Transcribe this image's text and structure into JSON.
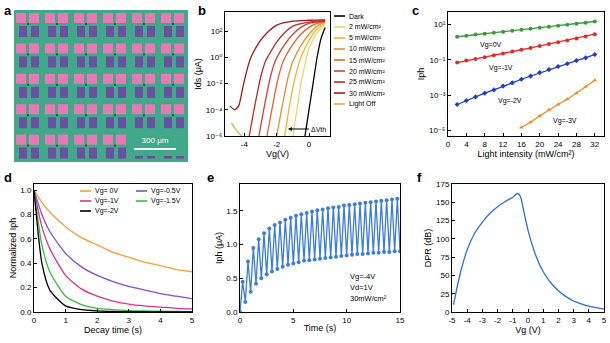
{
  "chart_data": [
    {
      "type": "image",
      "title": "a",
      "scale_bar": "300 μm"
    },
    {
      "type": "line",
      "title": "b",
      "x_label": "Vg(V)",
      "y_label": "Ids (μA)",
      "log": "y",
      "xlim": [
        -5.2,
        1.3
      ],
      "xticks": [
        -4,
        -2,
        0
      ],
      "ylim": [
        1e-06,
        3000
      ],
      "yticks": [
        {
          "value": 1e-06,
          "label": "10⁻⁶"
        },
        {
          "value": 0.0001,
          "label": "10⁻⁴"
        },
        {
          "value": 0.01,
          "label": "10⁻²"
        },
        {
          "value": 1,
          "label": "10⁰"
        },
        {
          "value": 100,
          "label": "10²"
        }
      ],
      "legend": "right",
      "annotations": [
        "ΔVth"
      ],
      "series": [
        {
          "name": "Dark",
          "color": "#000000",
          "x": [
            -0.25,
            0,
            0.25,
            0.5,
            0.75,
            1.0
          ],
          "values": [
            1e-06,
            0.0001,
            0.01,
            1,
            30,
            200
          ]
        },
        {
          "name": "2 mW/cm²",
          "color": "#f3d36a",
          "x": [
            -1,
            -0.75,
            -0.5,
            -0.25,
            0,
            0.5,
            1
          ],
          "values": [
            1e-06,
            0.0001,
            0.01,
            0.3,
            5,
            80,
            300
          ]
        },
        {
          "name": "5 mW/cm²",
          "color": "#f0b429",
          "x": [
            -1.5,
            -1.25,
            -1,
            -0.75,
            -0.5,
            0,
            0.5,
            1
          ],
          "values": [
            1e-06,
            0.0001,
            0.005,
            0.1,
            1,
            20,
            150,
            400
          ]
        },
        {
          "name": "10 mW/cm²",
          "color": "#f08c2a",
          "x": [
            -2,
            -1.75,
            -1.5,
            -1.25,
            -1,
            -0.5,
            0,
            0.5,
            1
          ],
          "values": [
            1e-06,
            5e-05,
            0.002,
            0.05,
            0.5,
            8,
            60,
            250,
            500
          ]
        },
        {
          "name": "15 mW/cm²",
          "color": "#e8632a",
          "x": [
            -2.6,
            -2.35,
            -2.1,
            -1.85,
            -1.6,
            -1,
            -0.5,
            0,
            0.5,
            1
          ],
          "values": [
            1e-06,
            5e-05,
            0.002,
            0.05,
            0.5,
            10,
            60,
            200,
            400,
            550
          ]
        },
        {
          "name": "20 mW/cm²",
          "color": "#d9402a",
          "x": [
            -3.1,
            -2.85,
            -2.6,
            -2.35,
            -2.1,
            -1.5,
            -1,
            -0.5,
            0,
            1
          ],
          "values": [
            1e-06,
            5e-05,
            0.002,
            0.05,
            0.5,
            10,
            60,
            200,
            400,
            600
          ]
        },
        {
          "name": "25 mW/cm²",
          "color": "#c0282a",
          "x": [
            -3.7,
            -3.45,
            -3.2,
            -2.95,
            -2.7,
            -2,
            -1.5,
            -1,
            0,
            1
          ],
          "values": [
            1e-06,
            5e-05,
            0.002,
            0.05,
            0.5,
            15,
            80,
            250,
            500,
            650
          ]
        },
        {
          "name": "30 mW/cm²",
          "color": "#a01818",
          "x": [
            -4.9,
            -4.6,
            -4.35,
            -4.1,
            -3.85,
            -3.6,
            -3,
            -2.5,
            -2,
            -1,
            0,
            1
          ],
          "values": [
            0.0002,
            0.0001,
            0.0002,
            0.005,
            0.1,
            1,
            20,
            100,
            300,
            600,
            700,
            750
          ]
        },
        {
          "name": "Light Off",
          "color": "#e0b030",
          "x": [
            -4.8,
            -4.6,
            -4.4,
            -4.2
          ],
          "values": [
            1e-05,
            4e-06,
            2e-06,
            1e-06
          ]
        }
      ]
    },
    {
      "type": "scatter",
      "title": "c",
      "x_label": "Light intensity (mW/cm²)",
      "y_label": "Iph",
      "log": "y",
      "xlim": [
        0,
        34
      ],
      "xticks": [
        0,
        4,
        8,
        12,
        16,
        20,
        24,
        28,
        32
      ],
      "ylim": [
        5e-06,
        50
      ],
      "yticks": [
        {
          "value": 1e-05,
          "label": "10⁻⁵"
        },
        {
          "value": 0.001,
          "label": "10⁻³"
        },
        {
          "value": 0.1,
          "label": "10⁻¹"
        },
        {
          "value": 10,
          "label": "10¹"
        }
      ],
      "x": [
        2,
        4,
        6,
        8,
        10,
        12,
        14,
        16,
        18,
        20,
        22,
        24,
        26,
        28,
        30,
        32
      ],
      "series": [
        {
          "name": "Vg=0V",
          "color": "#3a9a3a",
          "marker": "circle",
          "values": [
            2,
            2.3,
            2.7,
            3,
            3.4,
            3.9,
            4.4,
            5,
            5.7,
            6.5,
            7.4,
            8.4,
            9.6,
            11,
            12.5,
            14.5
          ]
        },
        {
          "name": "Vg=-1V",
          "color": "#e8282a",
          "marker": "circle",
          "values": [
            0.07,
            0.09,
            0.11,
            0.14,
            0.18,
            0.23,
            0.29,
            0.37,
            0.47,
            0.6,
            0.77,
            0.98,
            1.25,
            1.6,
            2.1,
            2.8
          ]
        },
        {
          "name": "Vg=-2V",
          "color": "#2040c0",
          "marker": "diamond",
          "values": [
            0.0003,
            0.0005,
            0.0008,
            0.0013,
            0.002,
            0.0033,
            0.005,
            0.008,
            0.012,
            0.019,
            0.028,
            0.042,
            0.06,
            0.09,
            0.13,
            0.2
          ]
        },
        {
          "name": "Vg=-3V",
          "color": "#f08a20",
          "marker": "triangle-up",
          "values": [
            null,
            null,
            null,
            null,
            null,
            null,
            null,
            1.5e-05,
            3e-05,
            7e-05,
            0.00015,
            0.0003,
            0.0006,
            0.0013,
            0.003,
            0.007
          ]
        }
      ]
    },
    {
      "type": "line",
      "title": "d",
      "x_label": "Decay time (s)",
      "y_label": "Normalized Iph",
      "xlim": [
        0,
        5
      ],
      "xticks": [
        0,
        1,
        2,
        3,
        4,
        5
      ],
      "ylim": [
        0,
        1.05
      ],
      "yticks": [
        {
          "value": 0,
          "label": "0.0"
        },
        {
          "value": 0.2,
          "label": "0.2"
        },
        {
          "value": 0.4,
          "label": "0.4"
        },
        {
          "value": 0.6,
          "label": "0.6"
        },
        {
          "value": 0.8,
          "label": "0.8"
        },
        {
          "value": 1,
          "label": "1.0"
        }
      ],
      "legend": "upper right",
      "x": [
        0,
        0.25,
        0.5,
        1,
        1.5,
        2,
        2.5,
        3,
        3.5,
        4,
        4.5,
        5
      ],
      "series": [
        {
          "name": "Vg= 0V",
          "color": "#f5a030",
          "values": [
            1,
            0.9,
            0.82,
            0.7,
            0.61,
            0.55,
            0.49,
            0.45,
            0.41,
            0.38,
            0.35,
            0.33
          ]
        },
        {
          "name": "Vg=-0.5V",
          "color": "#8a4fc0",
          "values": [
            1,
            0.8,
            0.66,
            0.48,
            0.37,
            0.3,
            0.25,
            0.21,
            0.18,
            0.15,
            0.13,
            0.11
          ]
        },
        {
          "name": "Vg=-1V",
          "color": "#e0308a",
          "values": [
            1,
            0.7,
            0.52,
            0.3,
            0.19,
            0.13,
            0.09,
            0.065,
            0.05,
            0.04,
            0.03,
            0.025
          ]
        },
        {
          "name": "Vg=-1.5V",
          "color": "#30c040",
          "values": [
            1,
            0.55,
            0.33,
            0.13,
            0.06,
            0.03,
            0.02,
            0.012,
            0.008,
            0.006,
            0.004,
            0.003
          ]
        },
        {
          "name": "Vg=-2V",
          "color": "#000000",
          "values": [
            1,
            0.4,
            0.18,
            0.05,
            0.02,
            0.01,
            0.005,
            0.003,
            0.002,
            0.001,
            0.001,
            0.001
          ]
        }
      ]
    },
    {
      "type": "line",
      "title": "e",
      "x_label": "Time (s)",
      "y_label": "Iph (μA)",
      "xlim": [
        0,
        15
      ],
      "xticks": [
        0,
        5,
        10,
        15
      ],
      "ylim": [
        0,
        1.9
      ],
      "yticks": [
        {
          "value": 0,
          "label": "0.0"
        },
        {
          "value": 0.5,
          "label": "0.5"
        },
        {
          "value": 1,
          "label": "1.0"
        },
        {
          "value": 1.5,
          "label": "1.5"
        }
      ],
      "annotations": [
        "Vg=-4V",
        "Vd=1V",
        "30mW/cm²"
      ],
      "x": [
        0,
        0.25,
        0.5,
        0.75,
        1,
        1.25,
        1.5,
        1.75,
        2,
        2.25,
        2.5,
        2.75,
        3,
        3.25,
        3.5,
        3.75,
        4,
        4.25,
        4.5,
        4.75,
        5,
        5.25,
        5.5,
        5.75,
        6,
        6.25,
        6.5,
        6.75,
        7,
        7.25,
        7.5,
        7.75,
        8,
        8.25,
        8.5,
        8.75,
        9,
        9.25,
        9.5,
        9.75,
        10,
        10.25,
        10.5,
        10.75,
        11,
        11.25,
        11.5,
        11.75,
        12,
        12.25,
        12.5,
        12.75,
        13,
        13.25,
        13.5,
        13.75,
        14,
        14.25,
        14.5,
        14.75,
        15
      ],
      "series": [
        {
          "color": "#3b7dd8",
          "marker": "circle",
          "values": [
            0.0,
            0.45,
            0.15,
            0.75,
            0.3,
            0.95,
            0.42,
            1.08,
            0.5,
            1.17,
            0.56,
            1.24,
            0.6,
            1.29,
            0.64,
            1.33,
            0.67,
            1.37,
            0.7,
            1.4,
            0.72,
            1.43,
            0.74,
            1.45,
            0.76,
            1.47,
            0.77,
            1.49,
            0.78,
            1.51,
            0.79,
            1.52,
            0.8,
            1.54,
            0.81,
            1.55,
            0.82,
            1.56,
            0.83,
            1.58,
            0.84,
            1.59,
            0.85,
            1.6,
            0.86,
            1.61,
            0.86,
            1.62,
            0.87,
            1.63,
            0.88,
            1.64,
            0.88,
            1.65,
            0.89,
            1.66,
            0.89,
            1.67,
            0.9,
            1.68,
            0.9
          ]
        }
      ]
    },
    {
      "type": "line",
      "title": "f",
      "x_label": "Vg (V)",
      "y_label": "DPR (dB)",
      "xlim": [
        -5,
        5
      ],
      "xticks": [
        -5,
        -4,
        -3,
        -2,
        -1,
        0,
        1,
        2,
        3,
        4,
        5
      ],
      "ylim": [
        0,
        175
      ],
      "yticks": [
        0,
        25,
        50,
        75,
        100,
        125,
        150,
        175
      ],
      "x": [
        -4.9,
        -4.6,
        -4.3,
        -4,
        -3.5,
        -3,
        -2.5,
        -2,
        -1.5,
        -1,
        -0.7,
        -0.5,
        -0.3,
        0,
        0.5,
        1,
        1.5,
        2,
        2.5,
        3,
        3.5,
        4,
        4.5,
        5
      ],
      "series": [
        {
          "color": "#2f6fce",
          "values": [
            10,
            40,
            65,
            85,
            108,
            123,
            135,
            144,
            151,
            157,
            162,
            158,
            140,
            112,
            78,
            55,
            40,
            29,
            21,
            15,
            11,
            8,
            6,
            4
          ]
        }
      ]
    }
  ]
}
